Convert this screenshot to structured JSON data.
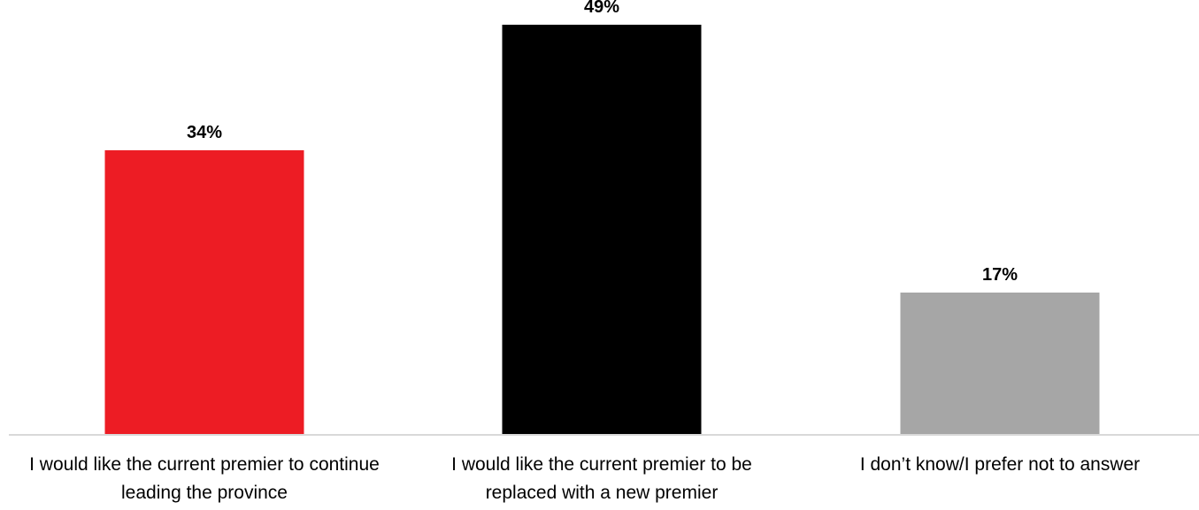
{
  "chart_data": {
    "type": "bar",
    "title": "",
    "xlabel": "",
    "ylabel": "",
    "categories": [
      "I would like the current premier to continue leading the province",
      "I would like the current premier to be replaced with a new premier",
      "I don’t know/I prefer not to answer"
    ],
    "series": [
      {
        "values": [
          34,
          49,
          17
        ],
        "colors": [
          "#ed1c24",
          "#000000",
          "#a6a6a6"
        ]
      }
    ],
    "value_labels": [
      "34%",
      "49%",
      "17%"
    ],
    "unit": "%",
    "ylim": [
      0,
      55
    ],
    "grid": false,
    "legend": "none"
  }
}
